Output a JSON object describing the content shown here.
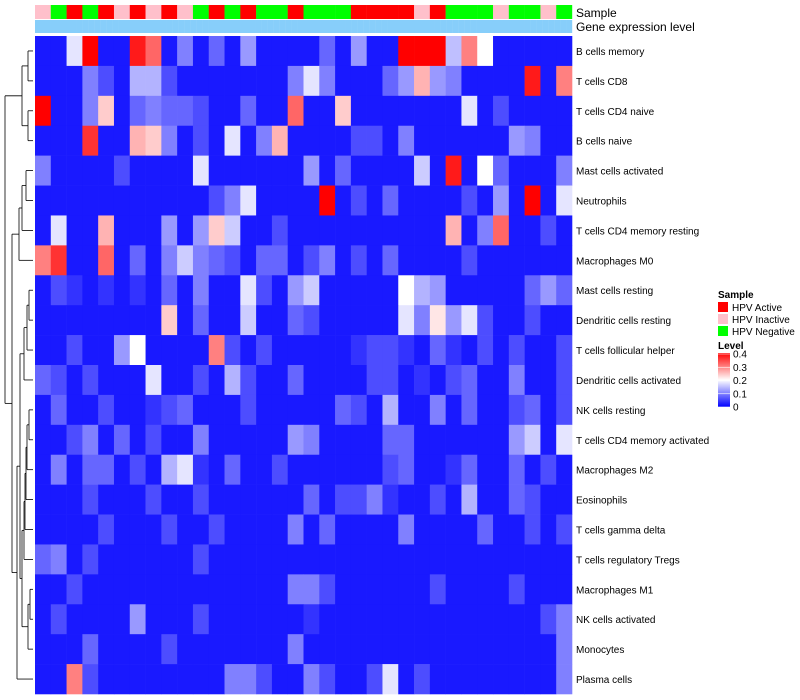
{
  "chart_data": {
    "type": "heatmap",
    "annotations": {
      "sample_track_label": "Sample",
      "expression_track_label": "Gene expression level"
    },
    "legend": {
      "sample_title": "Sample",
      "sample_entries": [
        {
          "label": "HPV Active",
          "color": "#ff0000"
        },
        {
          "label": "HPV Inactive",
          "color": "#ffc0cb"
        },
        {
          "label": "HPV Negative",
          "color": "#00ff00"
        }
      ],
      "level_title": "Level",
      "level_ticks": [
        "0.4",
        "0.3",
        "0.2",
        "0.1",
        "0"
      ],
      "level_range": [
        0,
        0.4
      ],
      "colors": {
        "low": "#0000ff",
        "mid": "#ffffff",
        "high": "#ff0000"
      }
    },
    "expression_track_colors": {
      "filled": "#87cefa",
      "empty": "#ffffff"
    },
    "expression_track": [
      1,
      1,
      1,
      1,
      1,
      1,
      1,
      1,
      1,
      1,
      1,
      1,
      1,
      1,
      1,
      1,
      1,
      1,
      1,
      1,
      1,
      1,
      1,
      1,
      1,
      1,
      1,
      1,
      1,
      1,
      1,
      1,
      1,
      1,
      1,
      1,
      1,
      1,
      1,
      1,
      1,
      1,
      1,
      1,
      1,
      1,
      1,
      1,
      1,
      1,
      1,
      1,
      1,
      1,
      1,
      1,
      1,
      1,
      1,
      1,
      1,
      1,
      1,
      1,
      1,
      1,
      1,
      1,
      1,
      1,
      1,
      1,
      1,
      1,
      1,
      1,
      1,
      1,
      1,
      1,
      1,
      1,
      1,
      1,
      1,
      1,
      1,
      1,
      1,
      1
    ],
    "samples": [
      "inactive",
      "negative",
      "active",
      "negative",
      "active",
      "inactive",
      "active",
      "inactive",
      "active",
      "inactive",
      "negative",
      "active",
      "negative",
      "active",
      "negative",
      "negative",
      "active",
      "negative",
      "negative",
      "negative",
      "active",
      "active",
      "active",
      "active",
      "inactive",
      "active",
      "negative",
      "negative",
      "negative",
      "inactive",
      "negative",
      "negative",
      "inactive",
      "negative"
    ],
    "rows": [
      "B cells memory",
      "T cells CD8",
      "T cells CD4 naive",
      "B cells naive",
      "Mast cells activated",
      "Neutrophils",
      "T cells CD4 memory resting",
      "Macrophages M0",
      "Mast cells resting",
      "Dendritic cells resting",
      "T cells follicular helper",
      "Dendritic cells activated",
      "NK cells resting",
      "T cells CD4 memory activated",
      "Macrophages M2",
      "Eosinophils",
      "T cells gamma delta",
      "T cells regulatory  Tregs",
      "Macrophages M1",
      "NK cells activated",
      "Monocytes",
      "Plasma cells"
    ],
    "values": [
      [
        0.02,
        0.02,
        0.18,
        0.4,
        0.02,
        0.02,
        0.38,
        0.32,
        0.02,
        0.1,
        0.02,
        0.08,
        0.02,
        0.12,
        0.02,
        0.02,
        0.02,
        0.02,
        0.08,
        0.02,
        0.12,
        0.02,
        0.02,
        0.4,
        0.4,
        0.4,
        0.15,
        0.3,
        0.2,
        0.02,
        0.02,
        0.02,
        0.02,
        0.02
      ],
      [
        0.02,
        0.02,
        0.02,
        0.1,
        0.06,
        0.02,
        0.14,
        0.14,
        0.06,
        0.02,
        0.02,
        0.02,
        0.02,
        0.02,
        0.02,
        0.02,
        0.1,
        0.18,
        0.1,
        0.02,
        0.02,
        0.02,
        0.08,
        0.12,
        0.26,
        0.12,
        0.1,
        0.02,
        0.02,
        0.02,
        0.02,
        0.38,
        0.02,
        0.3
      ],
      [
        0.4,
        0.02,
        0.02,
        0.1,
        0.24,
        0.02,
        0.08,
        0.1,
        0.08,
        0.08,
        0.06,
        0.02,
        0.02,
        0.08,
        0.02,
        0.02,
        0.32,
        0.02,
        0.02,
        0.24,
        0.02,
        0.02,
        0.02,
        0.02,
        0.02,
        0.02,
        0.02,
        0.18,
        0.02,
        0.06,
        0.02,
        0.02,
        0.02,
        0.02
      ],
      [
        0.02,
        0.02,
        0.02,
        0.36,
        0.02,
        0.02,
        0.26,
        0.24,
        0.1,
        0.02,
        0.06,
        0.02,
        0.18,
        0.02,
        0.1,
        0.26,
        0.02,
        0.02,
        0.02,
        0.02,
        0.06,
        0.06,
        0.02,
        0.1,
        0.02,
        0.02,
        0.02,
        0.02,
        0.02,
        0.02,
        0.12,
        0.1,
        0.02,
        0.02
      ],
      [
        0.1,
        0.02,
        0.02,
        0.02,
        0.02,
        0.06,
        0.02,
        0.02,
        0.02,
        0.02,
        0.18,
        0.02,
        0.02,
        0.02,
        0.02,
        0.02,
        0.02,
        0.12,
        0.02,
        0.08,
        0.02,
        0.02,
        0.02,
        0.02,
        0.16,
        0.02,
        0.38,
        0.02,
        0.2,
        0.08,
        0.02,
        0.02,
        0.02,
        0.1
      ],
      [
        0.02,
        0.02,
        0.02,
        0.02,
        0.02,
        0.02,
        0.02,
        0.02,
        0.02,
        0.02,
        0.02,
        0.06,
        0.1,
        0.18,
        0.02,
        0.02,
        0.02,
        0.02,
        0.4,
        0.02,
        0.06,
        0.02,
        0.08,
        0.02,
        0.02,
        0.02,
        0.02,
        0.06,
        0.02,
        0.12,
        0.02,
        0.4,
        0.02,
        0.18
      ],
      [
        0.02,
        0.18,
        0.02,
        0.02,
        0.26,
        0.02,
        0.02,
        0.02,
        0.12,
        0.02,
        0.12,
        0.24,
        0.16,
        0.02,
        0.02,
        0.06,
        0.02,
        0.02,
        0.02,
        0.02,
        0.02,
        0.02,
        0.02,
        0.02,
        0.02,
        0.02,
        0.26,
        0.02,
        0.1,
        0.32,
        0.02,
        0.02,
        0.06,
        0.02
      ],
      [
        0.3,
        0.36,
        0.02,
        0.02,
        0.32,
        0.02,
        0.08,
        0.02,
        0.1,
        0.16,
        0.1,
        0.08,
        0.06,
        0.02,
        0.08,
        0.08,
        0.02,
        0.06,
        0.1,
        0.02,
        0.06,
        0.02,
        0.08,
        0.02,
        0.02,
        0.02,
        0.02,
        0.06,
        0.02,
        0.02,
        0.02,
        0.02,
        0.02,
        0.02
      ],
      [
        0.02,
        0.06,
        0.04,
        0.02,
        0.04,
        0.02,
        0.04,
        0.02,
        0.08,
        0.02,
        0.1,
        0.02,
        0.02,
        0.18,
        0.06,
        0.02,
        0.12,
        0.16,
        0.02,
        0.02,
        0.02,
        0.02,
        0.02,
        0.2,
        0.14,
        0.12,
        0.02,
        0.02,
        0.02,
        0.02,
        0.02,
        0.08,
        0.12,
        0.08
      ],
      [
        0.02,
        0.02,
        0.02,
        0.02,
        0.02,
        0.02,
        0.02,
        0.02,
        0.24,
        0.02,
        0.08,
        0.02,
        0.02,
        0.16,
        0.02,
        0.02,
        0.08,
        0.06,
        0.02,
        0.02,
        0.02,
        0.02,
        0.02,
        0.18,
        0.1,
        0.22,
        0.12,
        0.18,
        0.06,
        0.02,
        0.02,
        0.06,
        0.02,
        0.02
      ],
      [
        0.02,
        0.02,
        0.06,
        0.02,
        0.02,
        0.12,
        0.2,
        0.02,
        0.02,
        0.02,
        0.02,
        0.3,
        0.06,
        0.02,
        0.06,
        0.02,
        0.02,
        0.02,
        0.02,
        0.02,
        0.04,
        0.06,
        0.06,
        0.04,
        0.02,
        0.08,
        0.04,
        0.02,
        0.06,
        0.02,
        0.06,
        0.02,
        0.02,
        0.06
      ],
      [
        0.08,
        0.06,
        0.02,
        0.06,
        0.02,
        0.02,
        0.02,
        0.18,
        0.02,
        0.02,
        0.06,
        0.02,
        0.14,
        0.06,
        0.02,
        0.02,
        0.08,
        0.02,
        0.02,
        0.02,
        0.02,
        0.06,
        0.06,
        0.02,
        0.04,
        0.02,
        0.06,
        0.08,
        0.02,
        0.02,
        0.1,
        0.02,
        0.02,
        0.06
      ],
      [
        0.02,
        0.08,
        0.02,
        0.02,
        0.06,
        0.02,
        0.02,
        0.04,
        0.06,
        0.08,
        0.02,
        0.02,
        0.02,
        0.06,
        0.02,
        0.02,
        0.02,
        0.02,
        0.02,
        0.08,
        0.06,
        0.02,
        0.14,
        0.02,
        0.02,
        0.1,
        0.02,
        0.08,
        0.02,
        0.02,
        0.06,
        0.08,
        0.02,
        0.06
      ],
      [
        0.02,
        0.02,
        0.06,
        0.1,
        0.02,
        0.08,
        0.02,
        0.06,
        0.02,
        0.02,
        0.1,
        0.02,
        0.02,
        0.02,
        0.02,
        0.02,
        0.12,
        0.1,
        0.02,
        0.02,
        0.02,
        0.02,
        0.08,
        0.08,
        0.02,
        0.02,
        0.02,
        0.02,
        0.02,
        0.02,
        0.12,
        0.16,
        0.02,
        0.18
      ],
      [
        0.02,
        0.1,
        0.02,
        0.08,
        0.08,
        0.02,
        0.06,
        0.02,
        0.14,
        0.18,
        0.04,
        0.02,
        0.08,
        0.02,
        0.02,
        0.06,
        0.02,
        0.02,
        0.02,
        0.02,
        0.02,
        0.02,
        0.06,
        0.08,
        0.02,
        0.02,
        0.04,
        0.08,
        0.02,
        0.02,
        0.08,
        0.02,
        0.06,
        0.02
      ],
      [
        0.02,
        0.02,
        0.02,
        0.06,
        0.02,
        0.02,
        0.02,
        0.06,
        0.02,
        0.02,
        0.06,
        0.02,
        0.02,
        0.02,
        0.02,
        0.02,
        0.02,
        0.08,
        0.02,
        0.06,
        0.06,
        0.1,
        0.04,
        0.02,
        0.02,
        0.06,
        0.02,
        0.14,
        0.02,
        0.02,
        0.08,
        0.06,
        0.02,
        0.02
      ],
      [
        0.02,
        0.02,
        0.02,
        0.02,
        0.06,
        0.02,
        0.02,
        0.02,
        0.06,
        0.02,
        0.02,
        0.06,
        0.02,
        0.02,
        0.02,
        0.02,
        0.1,
        0.02,
        0.08,
        0.02,
        0.02,
        0.02,
        0.02,
        0.1,
        0.02,
        0.02,
        0.02,
        0.02,
        0.08,
        0.02,
        0.02,
        0.06,
        0.02,
        0.06
      ],
      [
        0.08,
        0.1,
        0.02,
        0.06,
        0.02,
        0.02,
        0.02,
        0.02,
        0.02,
        0.02,
        0.06,
        0.02,
        0.02,
        0.02,
        0.02,
        0.02,
        0.02,
        0.02,
        0.02,
        0.02,
        0.02,
        0.02,
        0.02,
        0.02,
        0.02,
        0.02,
        0.02,
        0.02,
        0.02,
        0.02,
        0.02,
        0.02,
        0.02,
        0.02
      ],
      [
        0.02,
        0.02,
        0.06,
        0.02,
        0.02,
        0.02,
        0.02,
        0.02,
        0.02,
        0.02,
        0.02,
        0.02,
        0.02,
        0.02,
        0.02,
        0.02,
        0.1,
        0.1,
        0.06,
        0.02,
        0.02,
        0.02,
        0.02,
        0.02,
        0.02,
        0.06,
        0.02,
        0.02,
        0.02,
        0.02,
        0.06,
        0.02,
        0.02,
        0.02
      ],
      [
        0.02,
        0.06,
        0.02,
        0.02,
        0.02,
        0.02,
        0.12,
        0.02,
        0.02,
        0.02,
        0.06,
        0.02,
        0.02,
        0.02,
        0.02,
        0.02,
        0.02,
        0.04,
        0.02,
        0.02,
        0.02,
        0.02,
        0.02,
        0.02,
        0.02,
        0.02,
        0.02,
        0.02,
        0.02,
        0.02,
        0.02,
        0.02,
        0.06,
        0.1
      ],
      [
        0.02,
        0.02,
        0.02,
        0.08,
        0.02,
        0.02,
        0.02,
        0.02,
        0.06,
        0.02,
        0.02,
        0.02,
        0.02,
        0.02,
        0.02,
        0.02,
        0.1,
        0.02,
        0.02,
        0.02,
        0.02,
        0.02,
        0.02,
        0.02,
        0.02,
        0.02,
        0.02,
        0.02,
        0.02,
        0.02,
        0.02,
        0.02,
        0.02,
        0.1
      ],
      [
        0.02,
        0.02,
        0.3,
        0.06,
        0.02,
        0.02,
        0.02,
        0.02,
        0.02,
        0.02,
        0.02,
        0.02,
        0.1,
        0.1,
        0.06,
        0.02,
        0.02,
        0.1,
        0.06,
        0.02,
        0.02,
        0.06,
        0.18,
        0.02,
        0.06,
        0.02,
        0.02,
        0.02,
        0.02,
        0.02,
        0.02,
        0.02,
        0.02,
        0.1
      ]
    ]
  }
}
